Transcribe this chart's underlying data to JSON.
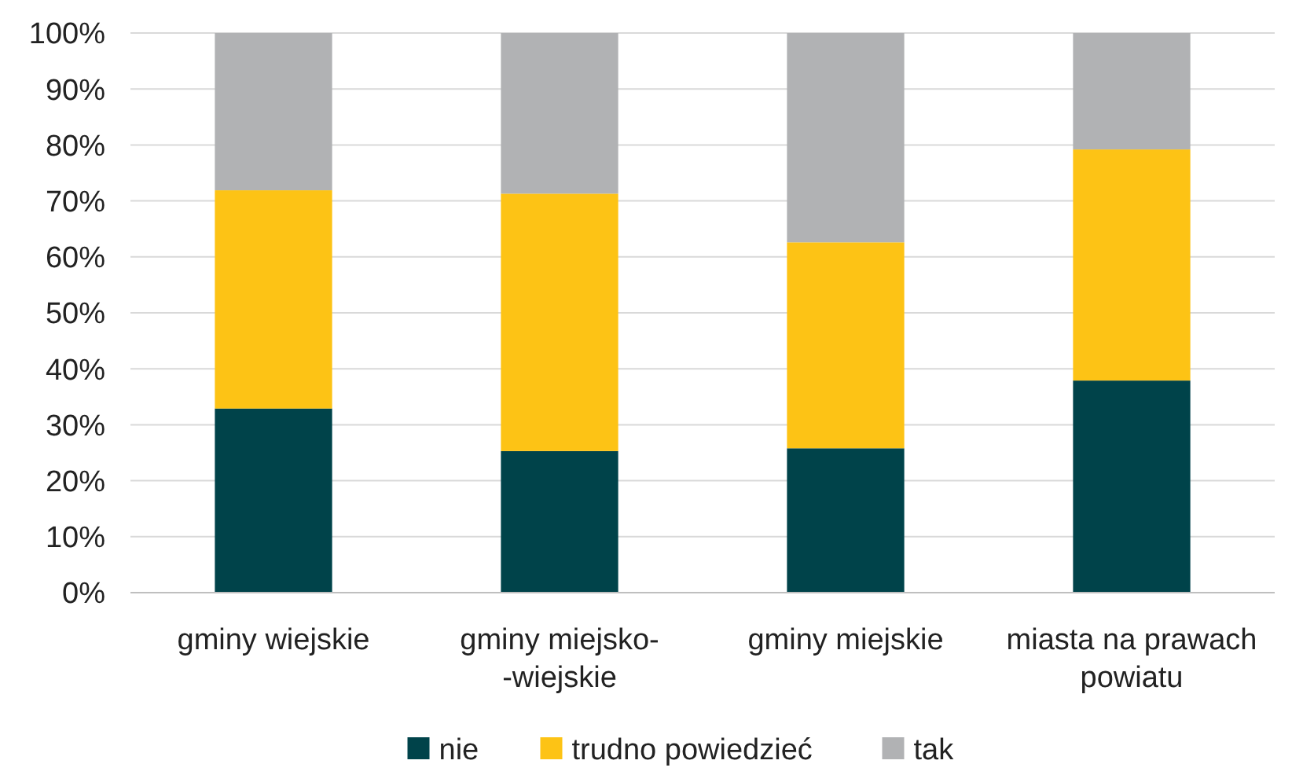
{
  "chart_data": {
    "type": "bar",
    "stacked": true,
    "categories": [
      "gminy wiejskie",
      "gminy miejsko-\n-wiejskie",
      "gminy miejskie",
      "miasta na prawach\npowiatu"
    ],
    "series": [
      {
        "name": "nie",
        "color": "#00434a",
        "values": [
          32.9,
          25.3,
          25.8,
          37.9
        ]
      },
      {
        "name": "trudno powiedzieć",
        "color": "#fdc315",
        "values": [
          39,
          46,
          36.8,
          41.3
        ]
      },
      {
        "name": "tak",
        "color": "#b1b2b4",
        "values": [
          28.1,
          28.7,
          37.4,
          20.8
        ]
      }
    ],
    "ylim": [
      0,
      100
    ],
    "yticks": [
      {
        "value": 0,
        "label": "0%"
      },
      {
        "value": 10,
        "label": "10%"
      },
      {
        "value": 20,
        "label": "20%"
      },
      {
        "value": 30,
        "label": "30%"
      },
      {
        "value": 40,
        "label": "40%"
      },
      {
        "value": 50,
        "label": "50%"
      },
      {
        "value": 60,
        "label": "60%"
      },
      {
        "value": 70,
        "label": "70%"
      },
      {
        "value": 80,
        "label": "80%"
      },
      {
        "value": 90,
        "label": "90%"
      },
      {
        "value": 100,
        "label": "100%"
      }
    ],
    "grid": "y",
    "legend": "bottom"
  }
}
